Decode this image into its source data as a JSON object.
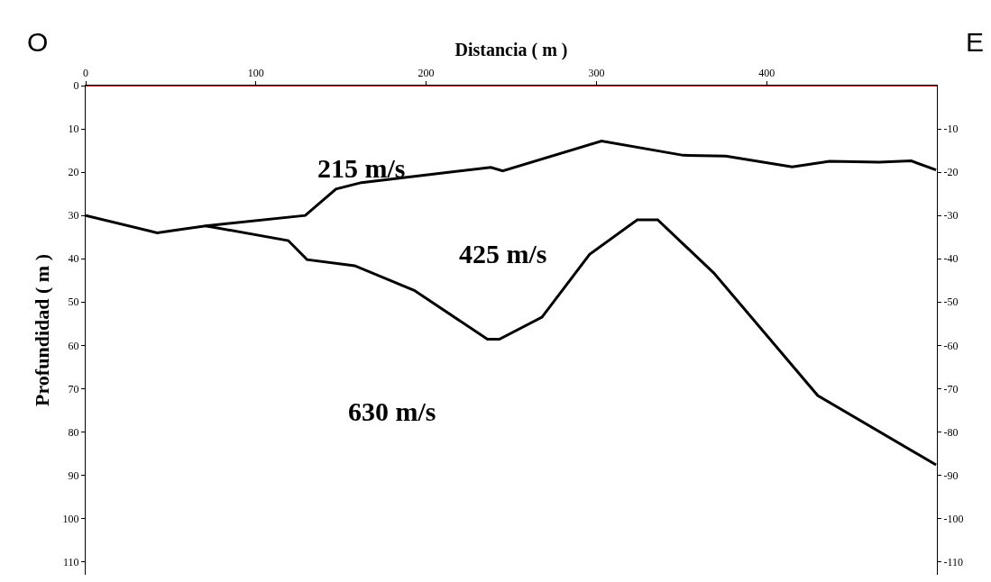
{
  "chart_data": {
    "type": "line",
    "xlabel": "Distancia ( m )",
    "ylabel": "Profundidad ( m )",
    "series": [
      {
        "color": "#000000",
        "x": [
          0,
          42,
          70.5,
          129,
          147,
          162,
          238,
          245,
          303,
          351,
          376,
          415,
          437,
          466,
          485,
          499.5
        ],
        "values": [
          30,
          34,
          32.4,
          30,
          23.9,
          22.4,
          18.9,
          19.7,
          12.8,
          16.1,
          16.3,
          18.8,
          17.5,
          17.7,
          17.4,
          19.5
        ]
      },
      {
        "color": "#000000",
        "x": [
          70.5,
          119,
          130,
          158,
          193,
          236,
          243,
          268,
          296,
          324,
          336,
          369,
          430,
          499.5
        ],
        "values": [
          32.4,
          35.8,
          40.2,
          41.6,
          47.3,
          58.6,
          58.6,
          53.5,
          39,
          31,
          31,
          43.3,
          71.6,
          87.6
        ]
      }
    ],
    "xlim": [
      0,
      500
    ],
    "xticks": [
      0,
      100,
      200,
      300,
      400
    ],
    "ylim": [
      113,
      0
    ],
    "yticks": [
      0,
      10,
      20,
      30,
      40,
      50,
      60,
      70,
      80,
      90,
      100,
      110
    ],
    "y2lim": [
      -113,
      0
    ],
    "y2ticks": [
      -10,
      -20,
      -30,
      -40,
      -50,
      -60,
      -70,
      -80,
      -90,
      -100,
      -110
    ],
    "ref_lines": [
      {
        "axis": "y",
        "value": 0,
        "color": "#c00000"
      }
    ],
    "annotations": [
      "O",
      "E",
      "215 m/s",
      "425 m/s",
      "630 m/s"
    ],
    "marker": "none",
    "line_style": "solid"
  }
}
